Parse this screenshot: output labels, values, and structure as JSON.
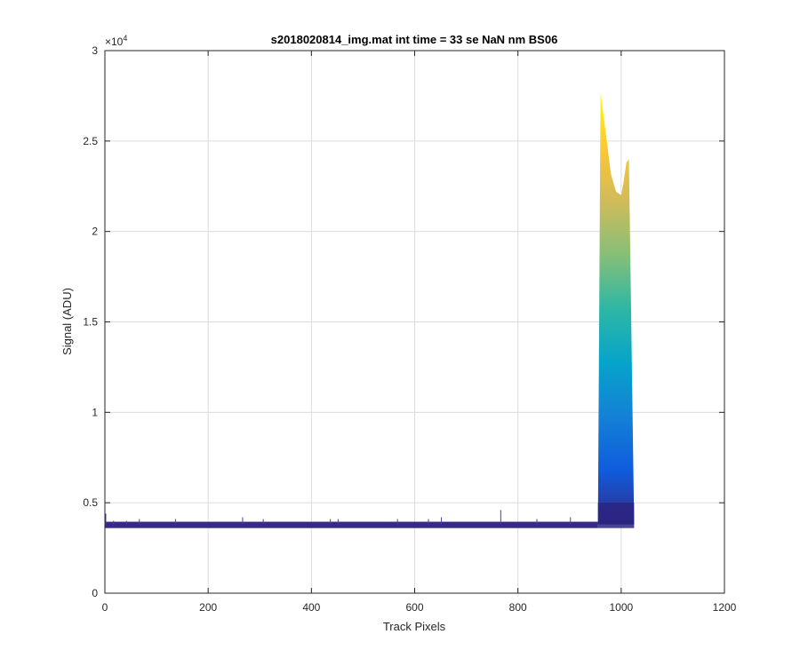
{
  "chart_data": {
    "type": "area",
    "title": "s2018020814_img.mat int time = 33 se  NaN nm BS06",
    "xlabel": "Track Pixels",
    "ylabel": "Signal (ADU)",
    "y_multiplier_label": "×10",
    "y_multiplier_exponent": "4",
    "xlim": [
      0,
      1200
    ],
    "ylim": [
      0,
      3
    ],
    "x_ticks": [
      0,
      200,
      400,
      600,
      800,
      1000,
      1200
    ],
    "x_tick_labels": [
      "0",
      "200",
      "400",
      "600",
      "800",
      "1000",
      "1200"
    ],
    "y_ticks": [
      0,
      0.5,
      1,
      1.5,
      2,
      2.5,
      3
    ],
    "y_tick_labels": [
      "0",
      "0.5",
      "1",
      "1.5",
      "2",
      "2.5",
      "3"
    ],
    "grid": true,
    "colormap": [
      "#352a87",
      "#0f5cdd",
      "#1481d6",
      "#06a4ca",
      "#2eb7a4",
      "#87bf77",
      "#d1bb59",
      "#fec832",
      "#f9fb0e"
    ],
    "baseline": {
      "x_range": [
        0,
        955
      ],
      "level": 0.38,
      "noise_spikes": [
        {
          "x": 0,
          "y": 0.44
        },
        {
          "x": 15,
          "y": 0.4
        },
        {
          "x": 40,
          "y": 0.4
        },
        {
          "x": 65,
          "y": 0.41
        },
        {
          "x": 135,
          "y": 0.41
        },
        {
          "x": 265,
          "y": 0.42
        },
        {
          "x": 305,
          "y": 0.41
        },
        {
          "x": 435,
          "y": 0.41
        },
        {
          "x": 450,
          "y": 0.41
        },
        {
          "x": 565,
          "y": 0.41
        },
        {
          "x": 625,
          "y": 0.41
        },
        {
          "x": 650,
          "y": 0.42
        },
        {
          "x": 765,
          "y": 0.46
        },
        {
          "x": 835,
          "y": 0.41
        },
        {
          "x": 900,
          "y": 0.42
        }
      ]
    },
    "peak": {
      "x": [
        955,
        960,
        970,
        980,
        990,
        1000,
        1005,
        1010,
        1015,
        1025
      ],
      "upper": [
        0.4,
        2.77,
        2.55,
        2.32,
        2.22,
        2.2,
        2.28,
        2.38,
        2.4,
        0.4
      ],
      "lower": [
        0.38,
        0.38,
        0.38,
        0.38,
        0.38,
        0.38,
        0.38,
        0.38,
        0.38,
        0.38
      ]
    }
  }
}
